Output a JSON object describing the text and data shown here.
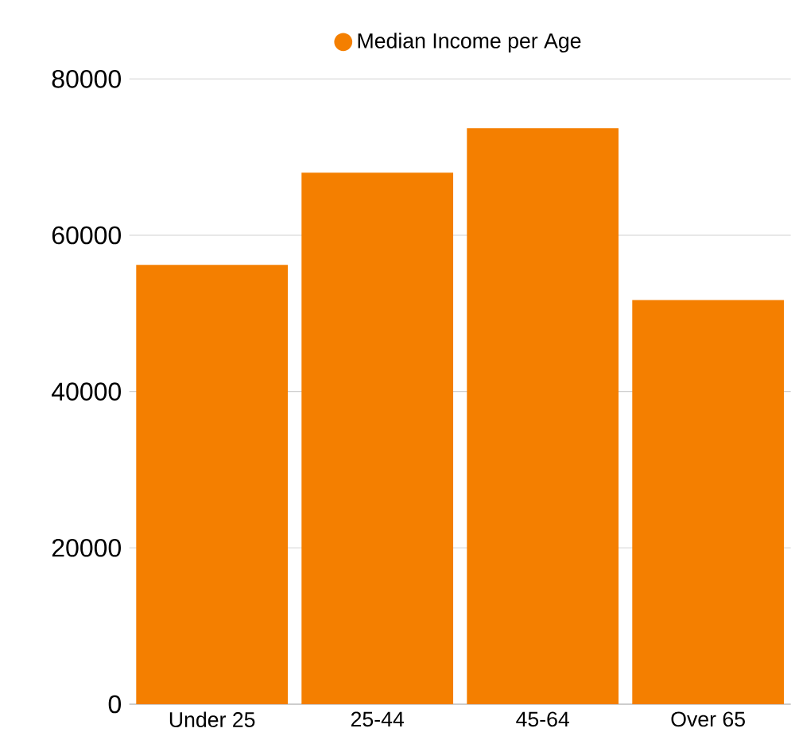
{
  "chart_data": {
    "type": "bar",
    "categories": [
      "Under 25",
      "25-44",
      "45-64",
      "Over 65"
    ],
    "series": [
      {
        "name": "Median Income per Age",
        "color": "#f47f00",
        "values": [
          56200,
          68000,
          73700,
          51700
        ]
      }
    ],
    "ylim": [
      0,
      80000
    ],
    "yticks": [
      0,
      20000,
      40000,
      60000,
      80000
    ],
    "grid": "y",
    "legend": "top"
  }
}
